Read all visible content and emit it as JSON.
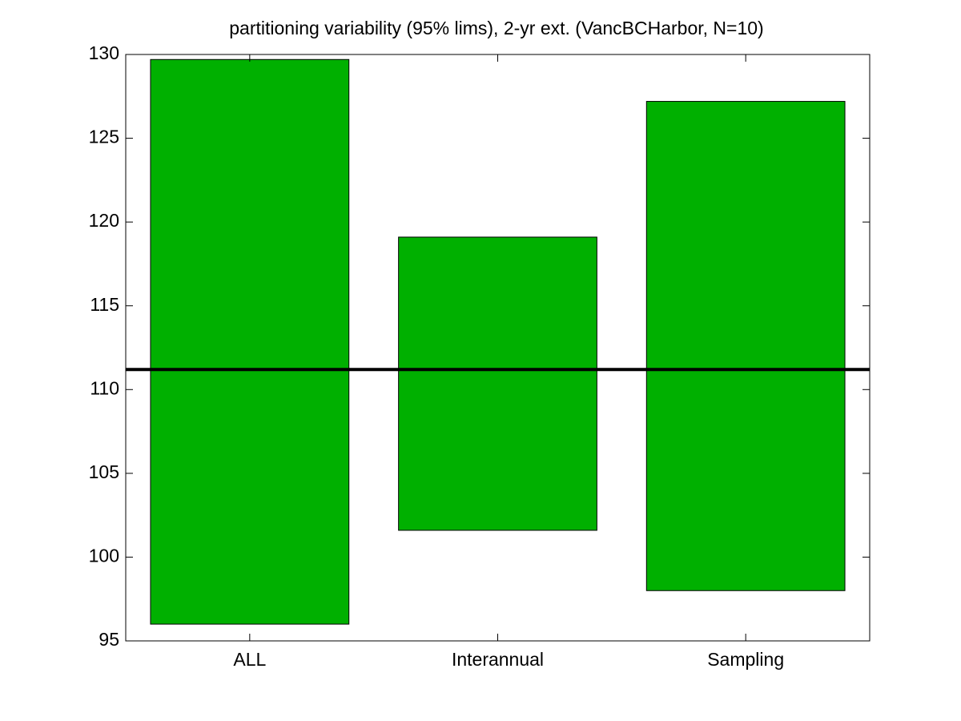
{
  "chart_data": {
    "type": "floating_bar",
    "title": "partitioning variability (95% lims), 2-yr ext. (VancBCHarbor, N=10)",
    "categories": [
      "ALL",
      "Interannual",
      "Sampling"
    ],
    "low": [
      96.0,
      101.6,
      98.0
    ],
    "high": [
      129.7,
      119.1,
      127.2
    ],
    "color": "#00b000",
    "reference_line": 111.2,
    "reference_color": "#000000",
    "ylim": [
      95,
      130
    ],
    "yticks": [
      95,
      100,
      105,
      110,
      115,
      120,
      125,
      130
    ]
  }
}
